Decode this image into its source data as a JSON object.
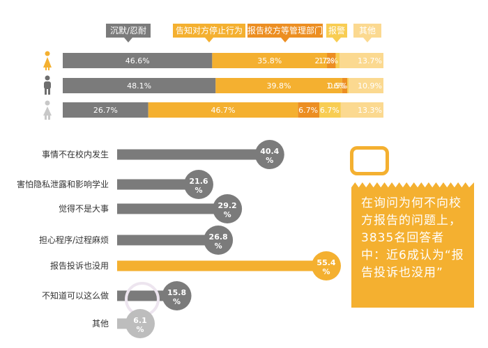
{
  "chart_data": [
    {
      "type": "bar",
      "orientation": "horizontal",
      "stacked": true,
      "categories": [
        "female",
        "male",
        "unspecified"
      ],
      "series": [
        {
          "name": "沉默/忍耐",
          "color": "#7b7b7b",
          "values": [
            46.6,
            48.1,
            26.7
          ]
        },
        {
          "name": "告知对方停止行为",
          "color": "#f4b030",
          "values": [
            35.8,
            39.8,
            46.7
          ]
        },
        {
          "name": "报告校方等管理部门",
          "color": "#ec8e22",
          "values": [
            2.7,
            1.6,
            6.7
          ]
        },
        {
          "name": "报警",
          "color": "#f8cd53",
          "values": [
            1.2,
            0.5,
            6.7
          ]
        },
        {
          "name": "其他",
          "color": "#fbd990",
          "values": [
            13.7,
            10.9,
            13.3
          ]
        }
      ],
      "labels": [
        [
          "46.6%",
          "35.8%",
          "2.7%",
          "1.2%",
          "13.7%"
        ],
        [
          "48.1%",
          "39.8%",
          "1.6%",
          "0.5%",
          "10.9%"
        ],
        [
          "26.7%",
          "46.7%",
          "6.7%",
          "6.7%",
          "13.3%"
        ]
      ],
      "legend": "top",
      "icons": [
        "female-person-icon",
        "male-person-icon",
        "neutral-person-icon"
      ]
    },
    {
      "type": "bar",
      "orientation": "horizontal",
      "categories": [
        "事情不在校内发生",
        "害怕隐私泄露和影响学业",
        "觉得不是大事",
        "担心程序/过程麻烦",
        "报告投诉也没用",
        "不知道可以这么做",
        "其他"
      ],
      "values": [
        40.4,
        21.6,
        29.2,
        26.8,
        55.4,
        15.8,
        6.1
      ],
      "value_labels": [
        "40.4",
        "21.6",
        "29.2",
        "26.8",
        "55.4",
        "15.8",
        "6.1"
      ],
      "unit": "%",
      "colors": {
        "default": "#7b7b7b",
        "highlight": "#f4b030",
        "other": "#bdbdbd"
      },
      "highlight_index": 4
    }
  ],
  "callout": {
    "text": "在询问为何不向校方报告的问题上，3835名回答者中：近6成认为“报告投诉也没用”"
  }
}
